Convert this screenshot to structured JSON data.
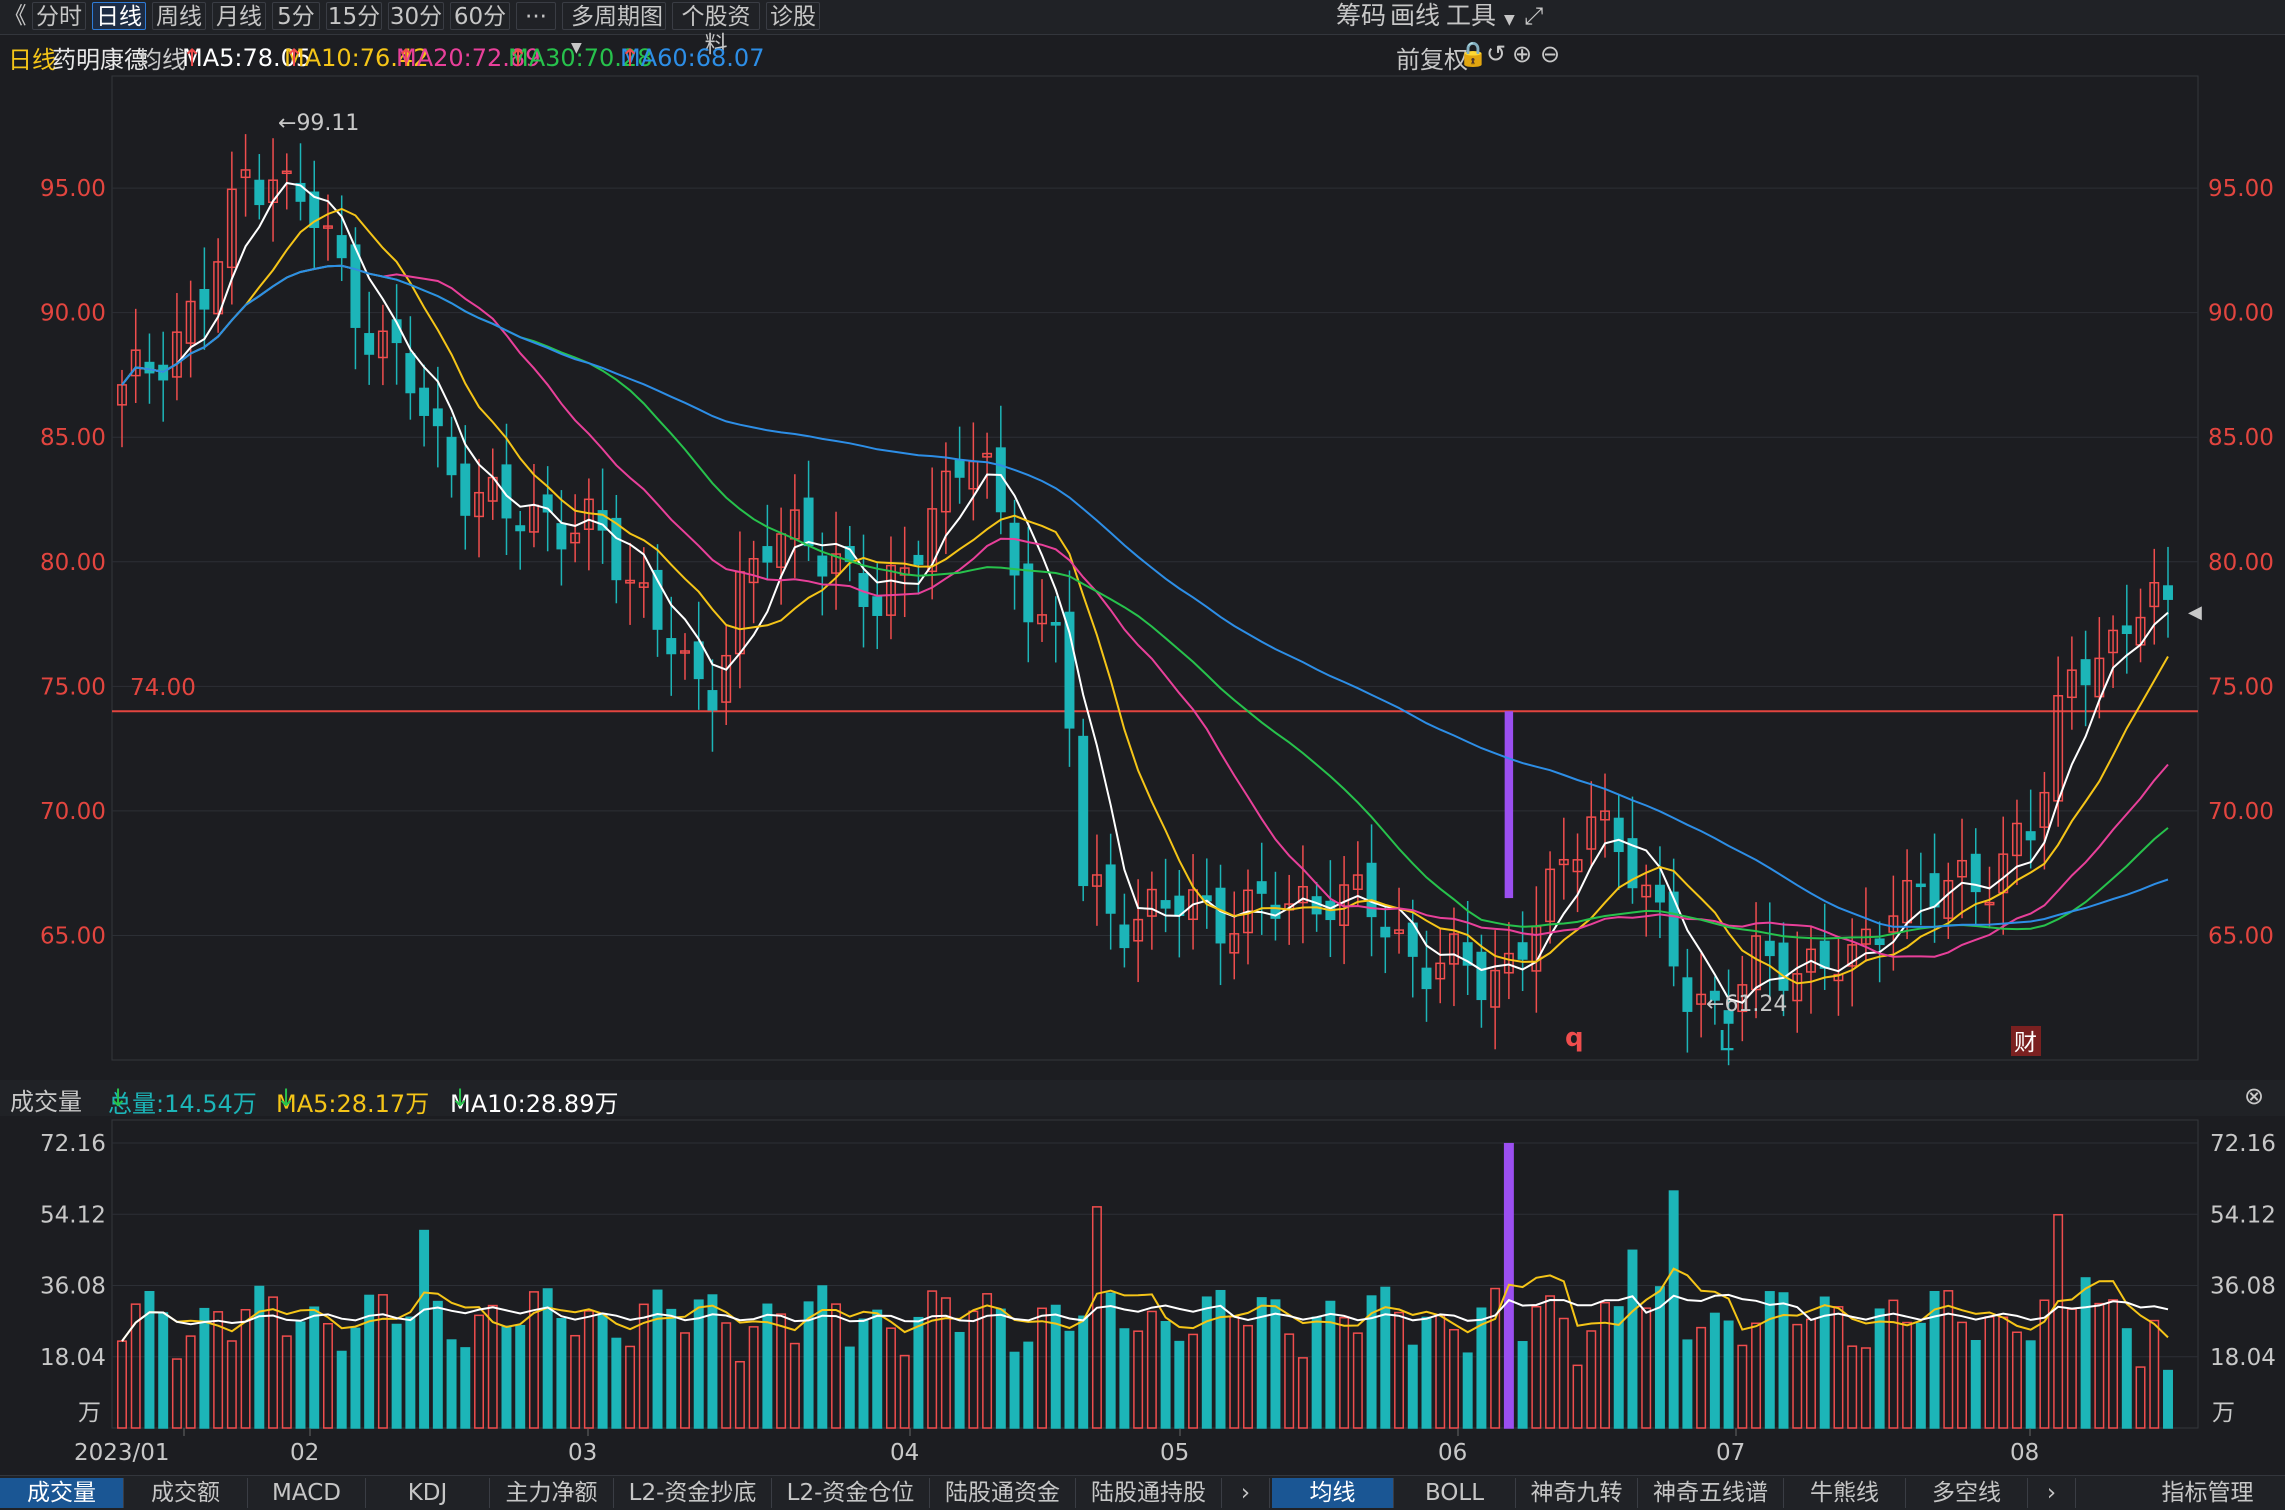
{
  "toolbar": {
    "back_label": "《",
    "periods": [
      "分时",
      "日线",
      "周线",
      "月线",
      "5分",
      "15分",
      "30分",
      "60分"
    ],
    "active_period": "日线",
    "more_label": "···",
    "multi_period_label": "多周期图",
    "profile_label": "个股资料",
    "diagnose_label": "诊股",
    "chip_label": "筹码",
    "draw_label": "画线",
    "tools_label": "工具"
  },
  "legend": {
    "period": "日线",
    "stock_name": "药明康德",
    "ma_label": "均线",
    "ma5": "MA5:78.05",
    "ma10": "MA10:76.42",
    "ma20": "MA20:72.89",
    "ma30": "MA30:70.28",
    "ma60": "MA60:68.07",
    "adjust_label": "前复权"
  },
  "price_axis": {
    "ticks": [
      "95.00",
      "90.00",
      "85.00",
      "80.00",
      "75.00",
      "70.00",
      "65.00"
    ],
    "hline_label": "74.00",
    "high_label": "99.11",
    "low_label": "61.24",
    "markers": [
      "q",
      "L",
      "财"
    ]
  },
  "volume": {
    "title": "成交量",
    "total": "总量:14.54万",
    "ma5": "MA5:28.17万",
    "ma10": "MA10:28.89万",
    "ticks": [
      "72.16",
      "54.12",
      "36.08",
      "18.04"
    ],
    "unit": "万"
  },
  "x_axis": {
    "labels": [
      "2023/01",
      "02",
      "03",
      "04",
      "05",
      "06",
      "07",
      "08"
    ]
  },
  "bottom_tabs": {
    "left": [
      "成交量",
      "成交额",
      "MACD",
      "KDJ",
      "主力净额",
      "L2-资金抄底",
      "L2-资金仓位",
      "陆股通资金",
      "陆股通持股"
    ],
    "right": [
      "均线",
      "BOLL",
      "神奇九转",
      "神奇五线谱",
      "牛熊线",
      "多空线"
    ],
    "active_left": "成交量",
    "active_right": "均线",
    "indicator_label": "指标管理"
  },
  "colors": {
    "up": "#ef4d4d",
    "down": "#1cb5b8",
    "ma5": "#ffffff",
    "ma10": "#f5c518",
    "ma20": "#e8409a",
    "ma30": "#27c24c",
    "ma60": "#2d8ee6",
    "highlight": "#9b4ff0"
  },
  "chart_data": {
    "type": "candlestick",
    "price_range": [
      60.0,
      99.5
    ],
    "reference_line": 74.0,
    "high": 99.11,
    "low": 61.24,
    "last_ma": {
      "MA5": 78.05,
      "MA10": 76.42,
      "MA20": 72.89,
      "MA30": 70.28,
      "MA60": 68.07
    },
    "volume_range": [
      0,
      72.16
    ],
    "volume_last": 14.54
  }
}
